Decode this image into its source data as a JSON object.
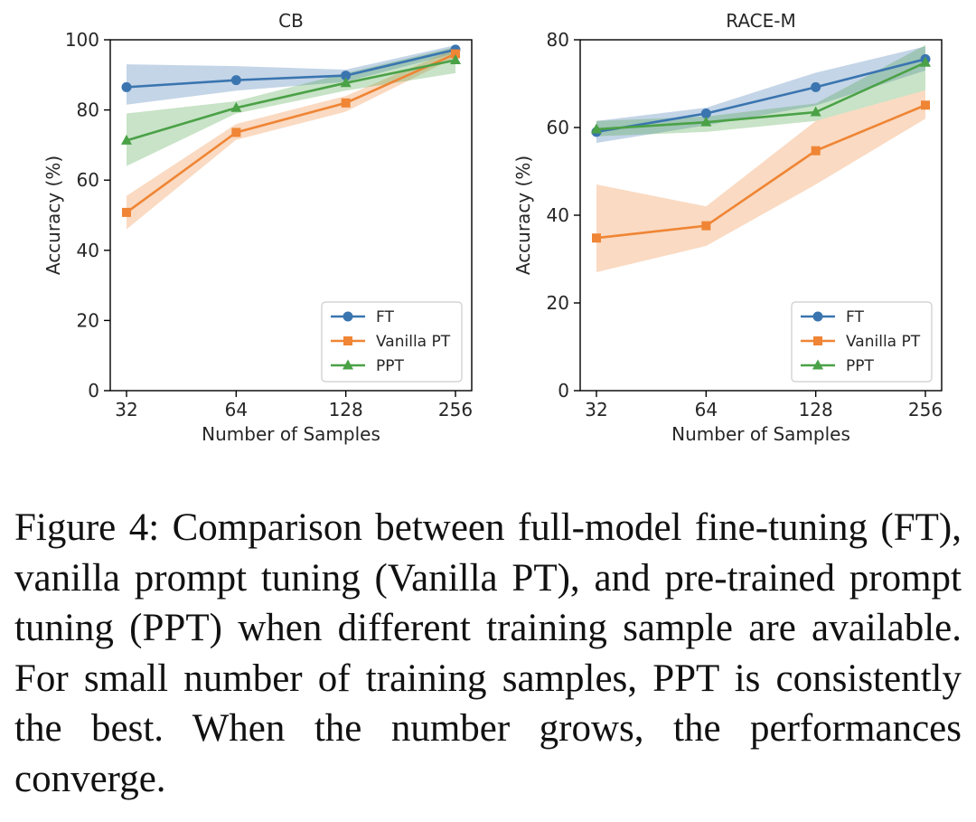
{
  "chart_data": [
    {
      "type": "line",
      "title": "CB",
      "xlabel": "Number of Samples",
      "ylabel": "Accuracy (%)",
      "x": [
        32,
        64,
        128,
        256
      ],
      "x_scale": "log2",
      "xticks": [
        "32",
        "64",
        "128",
        "256"
      ],
      "ylim": [
        0,
        100
      ],
      "yticks": [
        0,
        20,
        40,
        60,
        80,
        100
      ],
      "grid": false,
      "legend_position": "lower-right",
      "series": [
        {
          "name": "FT",
          "color": "#3a75b0",
          "marker": "circle",
          "values": [
            86.5,
            88.5,
            89.8,
            97.2
          ],
          "band_lower": [
            81.5,
            85.5,
            88.0,
            96.2
          ],
          "band_upper": [
            93.0,
            92.5,
            91.5,
            98.5
          ]
        },
        {
          "name": "Vanilla PT",
          "color": "#ef8535",
          "marker": "square",
          "values": [
            50.8,
            73.6,
            82.0,
            96.0
          ],
          "band_lower": [
            46.0,
            71.5,
            79.5,
            95.0
          ],
          "band_upper": [
            55.5,
            76.0,
            84.0,
            97.5
          ]
        },
        {
          "name": "PPT",
          "color": "#4aa146",
          "marker": "triangle",
          "values": [
            71.3,
            80.6,
            87.7,
            94.2
          ],
          "band_lower": [
            64.0,
            79.0,
            85.5,
            90.5
          ],
          "band_upper": [
            79.0,
            82.5,
            90.5,
            98.0
          ]
        }
      ]
    },
    {
      "type": "line",
      "title": "RACE-M",
      "xlabel": "Number of Samples",
      "ylabel": "Accuracy (%)",
      "x": [
        32,
        64,
        128,
        256
      ],
      "x_scale": "log2",
      "xticks": [
        "32",
        "64",
        "128",
        "256"
      ],
      "ylim": [
        0,
        80
      ],
      "yticks": [
        0,
        20,
        40,
        60,
        80
      ],
      "grid": false,
      "legend_position": "lower-right",
      "series": [
        {
          "name": "FT",
          "color": "#3a75b0",
          "marker": "circle",
          "values": [
            59.0,
            63.2,
            69.2,
            75.6
          ],
          "band_lower": [
            56.5,
            60.5,
            65.0,
            73.0
          ],
          "band_upper": [
            61.5,
            64.5,
            72.5,
            78.5
          ]
        },
        {
          "name": "Vanilla PT",
          "color": "#ef8535",
          "marker": "square",
          "values": [
            34.8,
            37.6,
            54.7,
            65.1
          ],
          "band_lower": [
            27.0,
            33.0,
            47.0,
            62.0
          ],
          "band_upper": [
            47.0,
            42.0,
            61.5,
            68.5
          ]
        },
        {
          "name": "PPT",
          "color": "#4aa146",
          "marker": "triangle",
          "values": [
            59.6,
            61.2,
            63.5,
            74.8
          ],
          "band_lower": [
            58.0,
            59.0,
            61.5,
            68.5
          ],
          "band_upper": [
            61.5,
            62.5,
            65.5,
            78.8
          ]
        }
      ]
    }
  ],
  "caption": "Figure 4: Comparison between full-model fine-tuning (FT), vanilla prompt tuning (Vanilla PT), and pre-trained prompt tuning (PPT) when different training sample are available. For small number of training samples, PPT is consistently the best.  When the number grows, the performances converge."
}
